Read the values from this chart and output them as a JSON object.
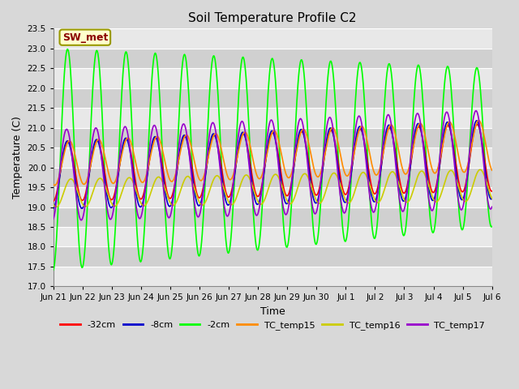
{
  "title": "Soil Temperature Profile C2",
  "xlabel": "Time",
  "ylabel": "Temperature (C)",
  "ylim": [
    17.0,
    23.5
  ],
  "yticks": [
    17.0,
    17.5,
    18.0,
    18.5,
    19.0,
    19.5,
    20.0,
    20.5,
    21.0,
    21.5,
    22.0,
    22.5,
    23.0,
    23.5
  ],
  "series": {
    "depth_32cm": {
      "label": "-32cm",
      "color": "#ff0000"
    },
    "depth_8cm": {
      "label": "-8cm",
      "color": "#0000cc"
    },
    "depth_2cm": {
      "label": "-2cm",
      "color": "#00ff00"
    },
    "tc_temp15": {
      "label": "TC_temp15",
      "color": "#ff8c00"
    },
    "tc_temp16": {
      "label": "TC_temp16",
      "color": "#cccc00"
    },
    "tc_temp17": {
      "label": "TC_temp17",
      "color": "#9900cc"
    }
  },
  "annotation_text": "SW_met",
  "annotation_color": "#8b0000",
  "annotation_bg": "#ffffcc",
  "annotation_border": "#999900",
  "n_points": 720,
  "t_start": 0,
  "t_end": 15,
  "bg_color": "#d8d8d8",
  "plot_bg_light": "#e8e8e8",
  "plot_bg_dark": "#d0d0d0",
  "grid_color": "#ffffff",
  "xtick_positions": [
    0,
    1,
    2,
    3,
    4,
    5,
    6,
    7,
    8,
    9,
    10,
    11,
    12,
    13,
    14,
    15
  ],
  "xtick_labels": [
    "Jun 21",
    "Jun 22",
    "Jun 23",
    "Jun 24",
    "Jun 25",
    "Jun 26",
    "Jun 27",
    "Jun 28",
    "Jun 29",
    "Jun 30",
    "Jul 1",
    "Jul 2",
    "Jul 3",
    "Jul 4",
    "Jul 5",
    "Jul 6"
  ],
  "figsize": [
    6.4,
    4.8
  ],
  "dpi": 100
}
